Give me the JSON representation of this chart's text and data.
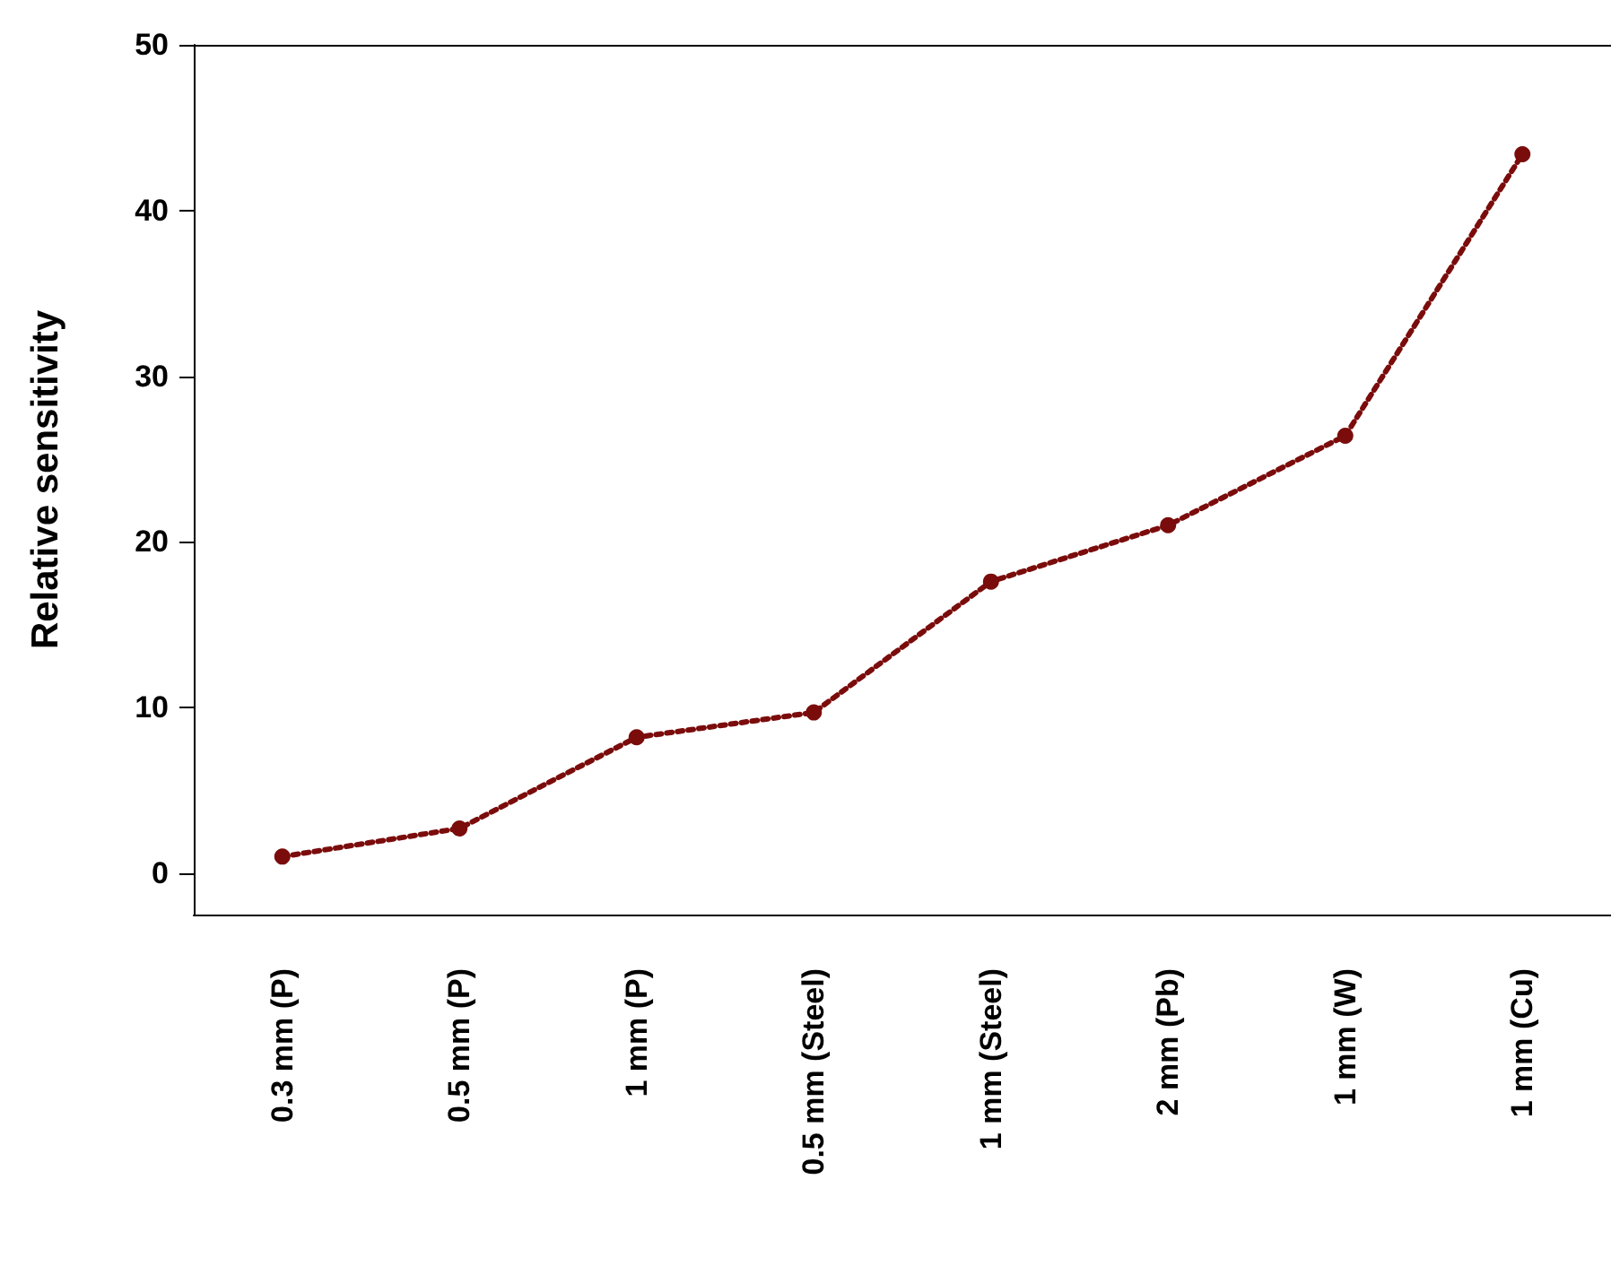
{
  "chart_data": {
    "type": "line",
    "ylabel": "Relative sensitivity",
    "categories": [
      "0.3 mm (P)",
      "0.5 mm (P)",
      "1 mm (P)",
      "0.5 mm (Steel)",
      "1 mm (Steel)",
      "2 mm (Pb)",
      "1 mm (W)",
      "1 mm (Cu)"
    ],
    "series": [
      {
        "color": "#7b0c0c",
        "values": [
          1.0,
          2.7,
          8.2,
          9.7,
          17.6,
          21.0,
          26.4,
          43.4
        ]
      }
    ],
    "ylim": [
      -2.5,
      50
    ],
    "yticks": [
      0,
      10,
      20,
      30,
      40,
      50
    ],
    "grid": false,
    "marker": "circle",
    "line_style": "dotted"
  }
}
